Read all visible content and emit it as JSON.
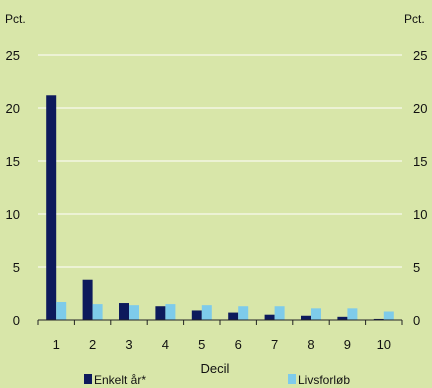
{
  "chart_data": {
    "type": "bar",
    "title": "",
    "y_unit_left": "Pct.",
    "y_unit_right": "Pct.",
    "xlabel": "Decil",
    "ylim": [
      0,
      25
    ],
    "yticks": [
      "0",
      "5",
      "10",
      "15",
      "20",
      "25"
    ],
    "categories": [
      "1",
      "2",
      "3",
      "4",
      "5",
      "6",
      "7",
      "8",
      "9",
      "10"
    ],
    "grid": true,
    "legend_position": "bottom",
    "series": [
      {
        "name": "Enkelt år*",
        "color": "#0d1a5c",
        "values": [
          21.2,
          3.8,
          1.6,
          1.3,
          0.9,
          0.7,
          0.5,
          0.4,
          0.3,
          0.1
        ]
      },
      {
        "name": "Livsforløb",
        "color": "#7ecbea",
        "values": [
          1.7,
          1.5,
          1.4,
          1.5,
          1.4,
          1.3,
          1.3,
          1.1,
          1.1,
          0.8
        ]
      }
    ],
    "background": "#d8e6a9",
    "gridline_color": "#ffffff",
    "axis_color": "#222222"
  }
}
